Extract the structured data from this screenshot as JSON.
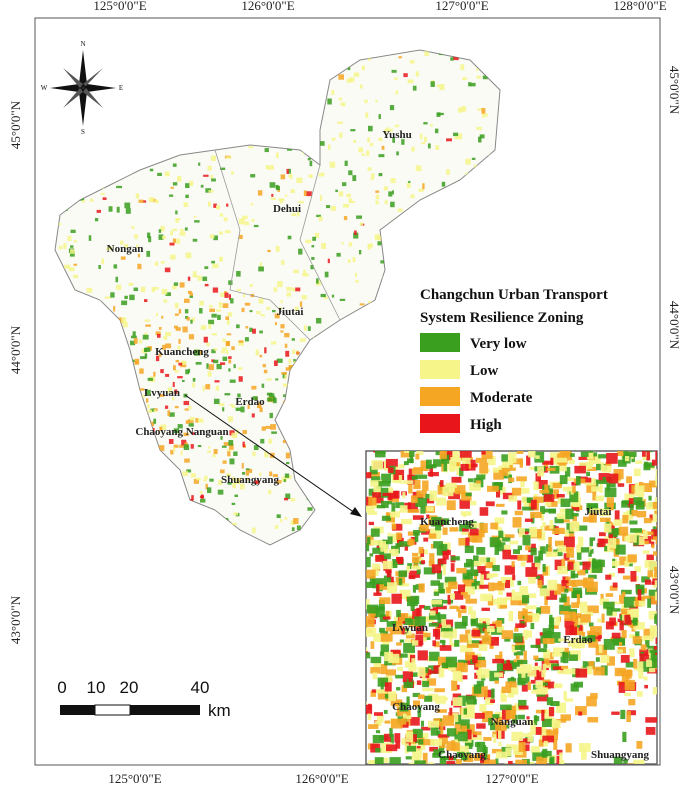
{
  "axes": {
    "top": [
      "125°0'0\"E",
      "126°0'0\"E",
      "127°0'0\"E",
      "128°0'0\"E"
    ],
    "bottom": [
      "125°0'0\"E",
      "126°0'0\"E",
      "127°0'0\"E"
    ],
    "left": [
      "45°0'0\"N",
      "44°0'0\"N",
      "43°0'0\"N"
    ],
    "right": [
      "45°0'0\"N",
      "44°0'0\"N",
      "43°0'0\"N"
    ]
  },
  "compass": {
    "n": "N",
    "e": "E",
    "s": "S",
    "w": "W"
  },
  "districts": [
    "Yushu",
    "Dehui",
    "Nongan",
    "Jiutai",
    "Kuancheng",
    "Lvyuan",
    "Erdao",
    "Chaoyang Nanguan",
    "Shuangyang"
  ],
  "inset": {
    "labels": [
      "Kuancheng",
      "Jiutai",
      "Lvyuan",
      "Erdao",
      "Chaoyang",
      "Nanguan",
      "Chaoyang",
      "Shuangyang"
    ]
  },
  "legend": {
    "title": [
      "Changchun Urban Transport",
      "System Resilience Zoning"
    ],
    "items": [
      {
        "label": "Very low",
        "color": "#3a9e1f"
      },
      {
        "label": "Low",
        "color": "#f5f58a"
      },
      {
        "label": "Moderate",
        "color": "#f5a623"
      },
      {
        "label": "High",
        "color": "#e8161b"
      }
    ]
  },
  "scale_bar": {
    "labels": [
      "0",
      "10",
      "20",
      "40"
    ],
    "unit": "km"
  }
}
